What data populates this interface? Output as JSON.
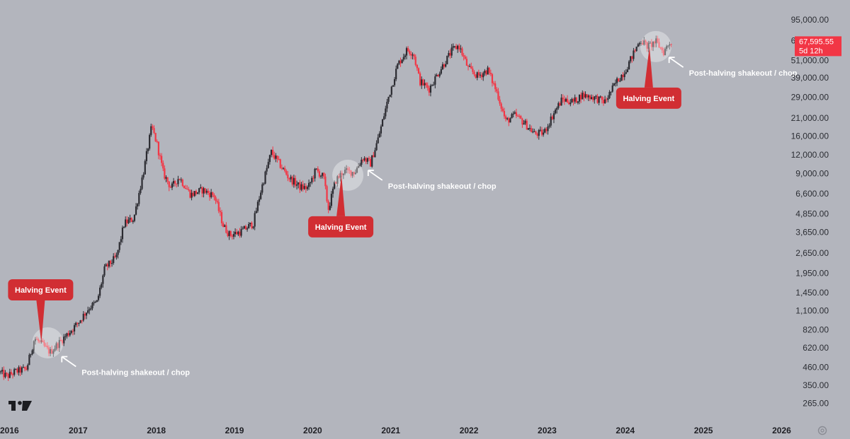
{
  "chart_data": {
    "type": "candlestick",
    "x_axis": {
      "ticks": [
        "2016",
        "2017",
        "2018",
        "2019",
        "2020",
        "2021",
        "2022",
        "2023",
        "2024",
        "2025",
        "2026"
      ],
      "range": [
        2016.0,
        2026.15
      ]
    },
    "y_axis": {
      "scale": "log",
      "ticks": [
        "95,000.00",
        "69,000.00",
        "51,000.00",
        "39,000.00",
        "29,000.00",
        "21,000.00",
        "16,000.00",
        "12,000.00",
        "9,000.00",
        "6,600.00",
        "4,850.00",
        "3,650.00",
        "2,650.00",
        "1,950.00",
        "1,450.00",
        "1,100.00",
        "820.00",
        "620.00",
        "460.00",
        "350.00",
        "265.00"
      ],
      "range": [
        210,
        118000
      ],
      "position": "right"
    },
    "last_price": {
      "value": "67,595.55",
      "countdown": "5d 12h",
      "color": "#f23645"
    },
    "series": [
      {
        "candle_colors": {
          "up": "#2b2b31",
          "down": "#f23645"
        },
        "points": [
          [
            2016.0,
            430
          ],
          [
            2016.1,
            400
          ],
          [
            2016.2,
            430
          ],
          [
            2016.35,
            450
          ],
          [
            2016.45,
            720
          ],
          [
            2016.55,
            650
          ],
          [
            2016.65,
            580
          ],
          [
            2016.8,
            700
          ],
          [
            2017.0,
            900
          ],
          [
            2017.15,
            1150
          ],
          [
            2017.25,
            1250
          ],
          [
            2017.35,
            2100
          ],
          [
            2017.5,
            2500
          ],
          [
            2017.6,
            4200
          ],
          [
            2017.72,
            4500
          ],
          [
            2017.85,
            9500
          ],
          [
            2017.95,
            18500
          ],
          [
            2018.02,
            14000
          ],
          [
            2018.1,
            9000
          ],
          [
            2018.2,
            7200
          ],
          [
            2018.3,
            8500
          ],
          [
            2018.45,
            6500
          ],
          [
            2018.6,
            7000
          ],
          [
            2018.75,
            6400
          ],
          [
            2018.87,
            4000
          ],
          [
            2018.95,
            3500
          ],
          [
            2019.1,
            3700
          ],
          [
            2019.25,
            4200
          ],
          [
            2019.35,
            7000
          ],
          [
            2019.48,
            12500
          ],
          [
            2019.58,
            10500
          ],
          [
            2019.7,
            8500
          ],
          [
            2019.85,
            7300
          ],
          [
            2019.95,
            7200
          ],
          [
            2020.05,
            9500
          ],
          [
            2020.15,
            8500
          ],
          [
            2020.21,
            5200
          ],
          [
            2020.3,
            8000
          ],
          [
            2020.4,
            9300
          ],
          [
            2020.55,
            9200
          ],
          [
            2020.65,
            11500
          ],
          [
            2020.75,
            10500
          ],
          [
            2020.85,
            15500
          ],
          [
            2020.98,
            29000
          ],
          [
            2021.1,
            48000
          ],
          [
            2021.22,
            60000
          ],
          [
            2021.3,
            57000
          ],
          [
            2021.38,
            37000
          ],
          [
            2021.5,
            33000
          ],
          [
            2021.65,
            45000
          ],
          [
            2021.8,
            60000
          ],
          [
            2021.88,
            64000
          ],
          [
            2022.0,
            45000
          ],
          [
            2022.12,
            40000
          ],
          [
            2022.25,
            44000
          ],
          [
            2022.38,
            30000
          ],
          [
            2022.48,
            20000
          ],
          [
            2022.6,
            22000
          ],
          [
            2022.72,
            19500
          ],
          [
            2022.85,
            16500
          ],
          [
            2022.97,
            16800
          ],
          [
            2023.1,
            23000
          ],
          [
            2023.2,
            28000
          ],
          [
            2023.35,
            27000
          ],
          [
            2023.45,
            30000
          ],
          [
            2023.6,
            29000
          ],
          [
            2023.75,
            27000
          ],
          [
            2023.9,
            37000
          ],
          [
            2024.0,
            43000
          ],
          [
            2024.08,
            52000
          ],
          [
            2024.2,
            70000
          ],
          [
            2024.3,
            63000
          ],
          [
            2024.4,
            68000
          ],
          [
            2024.5,
            58000
          ],
          [
            2024.58,
            67500
          ]
        ]
      }
    ],
    "annotations": [
      {
        "type": "halving",
        "label": "Halving Event",
        "date": 2016.52
      },
      {
        "type": "halving",
        "label": "Halving Event",
        "date": 2020.36
      },
      {
        "type": "halving",
        "label": "Halving Event",
        "date": 2024.3
      },
      {
        "type": "note",
        "label": "Post-halving shakeout / chop",
        "date": 2016.7
      },
      {
        "type": "note",
        "label": "Post-halving shakeout / chop",
        "date": 2020.62
      },
      {
        "type": "note",
        "label": "Post-halving shakeout / chop",
        "date": 2024.47
      }
    ],
    "grid": false,
    "legend": "none"
  },
  "icons": {
    "logo": "tradingview-logo-icon",
    "settings": "settings-gear-icon"
  }
}
